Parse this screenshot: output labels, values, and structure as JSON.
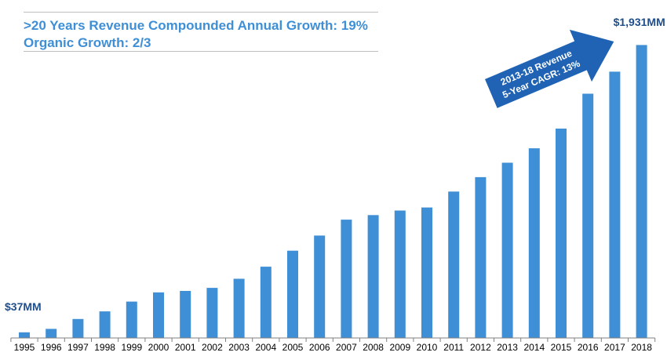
{
  "headline": {
    "line1": ">20 Years Revenue Compounded Annual Growth:  19%",
    "line2": "Organic Growth:  2/3"
  },
  "colors": {
    "bar": "#3f8fd6",
    "headline": "#3f8fd6",
    "arrow_fill": "#2063b4",
    "label_dark": "#1f4e8c",
    "axis_text": "#000000"
  },
  "chart_data": {
    "type": "bar",
    "categories": [
      "1995",
      "1996",
      "1997",
      "1998",
      "1999",
      "2000",
      "2001",
      "2002",
      "2003",
      "2004",
      "2005",
      "2006",
      "2007",
      "2008",
      "2009",
      "2010",
      "2011",
      "2012",
      "2013",
      "2014",
      "2015",
      "2016",
      "2017",
      "2018"
    ],
    "series": [
      {
        "values": [
          37,
          60,
          125,
          175,
          240,
          300,
          310,
          330,
          390,
          470,
          575,
          675,
          780,
          810,
          840,
          860,
          965,
          1060,
          1155,
          1250,
          1380,
          1610,
          1755,
          1931
        ]
      }
    ],
    "ylim": [
      0,
      2000
    ],
    "grid": false,
    "legend": "none",
    "annotations": {
      "first_value_label": "$37MM",
      "last_value_label": "$1,931MM",
      "arrow_line1": "2013-18 Revenue",
      "arrow_line2": "5-Year CAGR: 13%"
    }
  }
}
